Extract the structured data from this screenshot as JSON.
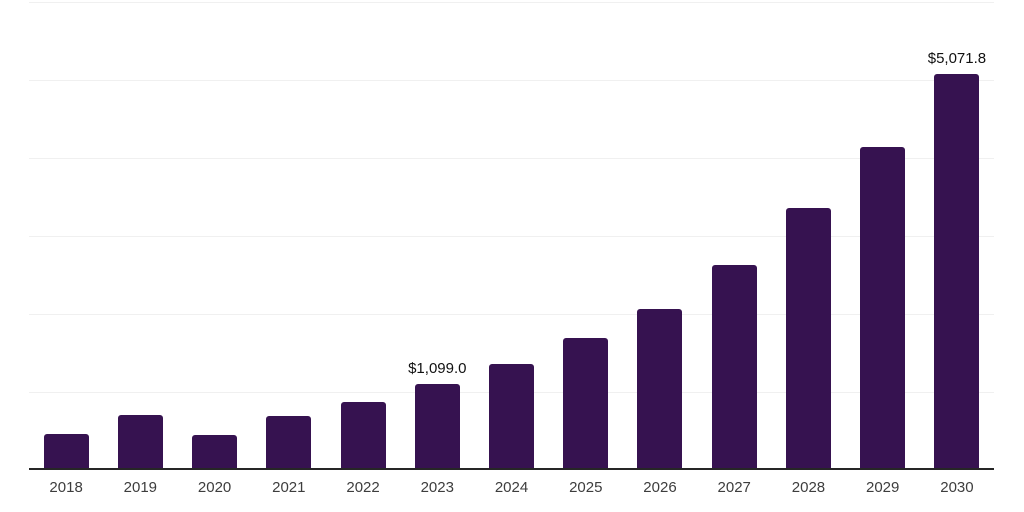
{
  "chart_data": {
    "type": "bar",
    "title": "",
    "xlabel": "",
    "ylabel": "",
    "categories": [
      "2018",
      "2019",
      "2020",
      "2021",
      "2022",
      "2023",
      "2024",
      "2025",
      "2026",
      "2027",
      "2028",
      "2029",
      "2030"
    ],
    "values": [
      460,
      700,
      450,
      690,
      870,
      1099.0,
      1360,
      1690,
      2060,
      2630,
      3360,
      4140,
      5071.8
    ],
    "point_labels": [
      "",
      "",
      "",
      "",
      "",
      "$1,099.0",
      "",
      "",
      "",
      "",
      "",
      "",
      "$5,071.8"
    ],
    "labeled_points": [
      {
        "category": "2023",
        "label": "$1,099.0",
        "value": 1099.0
      },
      {
        "category": "2030",
        "label": "$5,071.8",
        "value": 5071.8
      }
    ],
    "ylim": [
      0,
      6000
    ],
    "gridline_values": [
      1000,
      2000,
      3000,
      4000,
      5000,
      6000
    ],
    "grid": true,
    "legend": false,
    "y_axis_tick_labels_visible": false,
    "colors": {
      "bar": "#361250",
      "gridline": "#f0f0f0",
      "axis_line": "#262626",
      "tick_text": "#3d3d3d",
      "value_label_text": "#111111",
      "background": "#ffffff"
    }
  }
}
